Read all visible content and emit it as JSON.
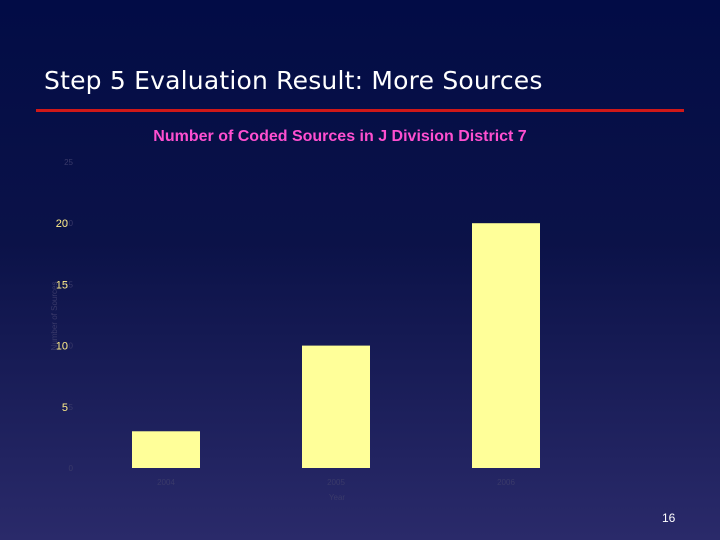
{
  "slide": {
    "title": "Step 5 Evaluation Result: More Sources",
    "number": "16"
  },
  "colors": {
    "background": "#020c46",
    "rule": "#d01818",
    "bar": "#ffff99",
    "chart_title": "#ff4fd0"
  },
  "chart_data": {
    "type": "bar",
    "title": "Number of Coded  Sources in J Division District 7",
    "xlabel": "Year",
    "ylabel": "Number of Sources",
    "categories": [
      "2004",
      "2005",
      "2006"
    ],
    "values": [
      3,
      10,
      20
    ],
    "ylim": [
      0,
      25
    ],
    "yticks": [
      0,
      5,
      10,
      15,
      20,
      25
    ],
    "emphasized_tick_labels": [
      "20",
      "15",
      "10",
      "5"
    ],
    "grid": false
  }
}
